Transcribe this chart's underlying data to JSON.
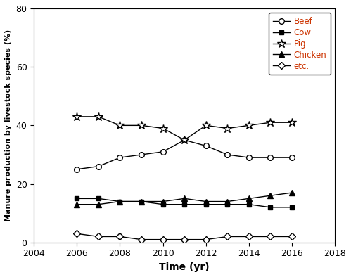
{
  "years": [
    2006,
    2007,
    2008,
    2009,
    2010,
    2011,
    2012,
    2013,
    2014,
    2015,
    2016
  ],
  "beef": [
    25,
    26,
    29,
    30,
    31,
    35,
    33,
    30,
    29,
    29,
    29
  ],
  "cow": [
    15,
    15,
    14,
    14,
    13,
    13,
    13,
    13,
    13,
    12,
    12
  ],
  "pig": [
    43,
    43,
    40,
    40,
    39,
    35,
    40,
    39,
    40,
    41,
    41
  ],
  "chicken": [
    13,
    13,
    14,
    14,
    14,
    15,
    14,
    14,
    15,
    16,
    17
  ],
  "etc": [
    3,
    2,
    2,
    1,
    1,
    1,
    1,
    2,
    2,
    2,
    2
  ],
  "xlabel": "Time (yr)",
  "ylabel": "Manure production by livestock species (%)",
  "xlim": [
    2004,
    2018
  ],
  "ylim": [
    0,
    80
  ],
  "yticks": [
    0,
    20,
    40,
    60,
    80
  ],
  "xticks": [
    2004,
    2006,
    2008,
    2010,
    2012,
    2014,
    2016,
    2018
  ],
  "legend_labels": [
    "Beef",
    "Cow",
    "Pig",
    "Chicken",
    "etc."
  ],
  "legend_text_color": "#cc3300",
  "line_color": "#000000",
  "background_color": "#ffffff"
}
